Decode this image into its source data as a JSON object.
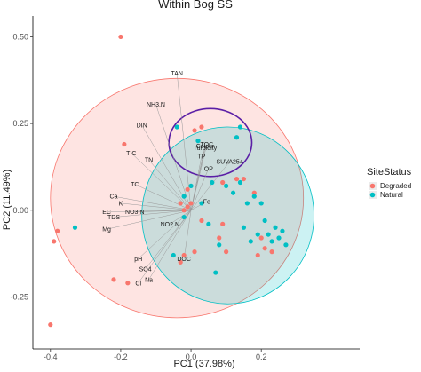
{
  "chart_data": {
    "type": "scatter",
    "title": "Within Bog SS",
    "xlabel": "PC1 (37.98%)",
    "ylabel": "PC2 (11.49%)",
    "xlim": [
      -0.45,
      0.48
    ],
    "ylim": [
      -0.4,
      0.56
    ],
    "x_ticks": [
      -0.4,
      -0.2,
      0.0,
      0.2
    ],
    "x_tick_labels": [
      "-0.4",
      "-0.2",
      "0.0",
      "0.2"
    ],
    "y_ticks": [
      -0.25,
      0.0,
      0.25,
      0.5
    ],
    "y_tick_labels": [
      "-0.25",
      "0.00",
      "0.25",
      "0.50"
    ],
    "grid": false,
    "legend": {
      "title": "SiteStatus",
      "position": "right",
      "entries": [
        {
          "label": "Degraded",
          "color": "#F8766D"
        },
        {
          "label": "Natural",
          "color": "#00BFC4"
        }
      ]
    },
    "series": [
      {
        "name": "Degraded",
        "color": "#F8766D",
        "points": [
          [
            -0.2,
            0.5
          ],
          [
            -0.19,
            0.19
          ],
          [
            -0.38,
            -0.06
          ],
          [
            -0.39,
            -0.09
          ],
          [
            -0.4,
            -0.33
          ],
          [
            -0.22,
            -0.2
          ],
          [
            -0.18,
            -0.21
          ],
          [
            -0.01,
            0.06
          ],
          [
            -0.02,
            0.0
          ],
          [
            -0.01,
            0.01
          ],
          [
            0.0,
            0.02
          ],
          [
            -0.03,
            0.02
          ],
          [
            0.01,
            0.23
          ],
          [
            0.03,
            0.24
          ],
          [
            0.09,
            0.08
          ],
          [
            0.13,
            0.09
          ],
          [
            0.15,
            0.09
          ],
          [
            -0.02,
            -0.13
          ],
          [
            -0.03,
            -0.15
          ],
          [
            0.01,
            -0.12
          ],
          [
            0.1,
            -0.12
          ],
          [
            0.09,
            -0.04
          ],
          [
            0.2,
            -0.08
          ],
          [
            0.21,
            -0.11
          ],
          [
            0.19,
            -0.13
          ],
          [
            0.23,
            -0.12
          ],
          [
            0.03,
            -0.03
          ],
          [
            0.18,
            0.05
          ],
          [
            0.08,
            -0.08
          ]
        ]
      },
      {
        "name": "Natural",
        "color": "#00BFC4",
        "points": [
          [
            -0.33,
            -0.05
          ],
          [
            -0.02,
            0.04
          ],
          [
            0.0,
            0.07
          ],
          [
            0.03,
            0.02
          ],
          [
            -0.04,
            0.24
          ],
          [
            0.02,
            0.2
          ],
          [
            0.06,
            0.08
          ],
          [
            0.1,
            0.07
          ],
          [
            0.14,
            0.08
          ],
          [
            0.14,
            0.24
          ],
          [
            0.13,
            0.21
          ],
          [
            0.12,
            0.05
          ],
          [
            0.16,
            0.02
          ],
          [
            0.21,
            -0.03
          ],
          [
            0.18,
            0.04
          ],
          [
            0.2,
            0.02
          ],
          [
            0.24,
            -0.05
          ],
          [
            0.22,
            -0.07
          ],
          [
            0.25,
            -0.08
          ],
          [
            0.26,
            -0.06
          ],
          [
            0.19,
            -0.07
          ],
          [
            0.23,
            -0.09
          ],
          [
            0.05,
            -0.04
          ],
          [
            -0.02,
            -0.02
          ],
          [
            0.08,
            -0.1
          ],
          [
            -0.05,
            -0.13
          ],
          [
            0.07,
            -0.18
          ],
          [
            0.17,
            -0.09
          ],
          [
            0.27,
            -0.1
          ],
          [
            0.15,
            -0.05
          ]
        ]
      }
    ],
    "ellipses": [
      {
        "group": "Degraded",
        "cx": -0.04,
        "cy": 0.035,
        "rx": 0.36,
        "ry": 0.345,
        "fill": "#F8766D",
        "stroke": "#F8766D"
      },
      {
        "group": "Natural",
        "cx": 0.105,
        "cy": -0.015,
        "rx": 0.245,
        "ry": 0.255,
        "fill": "#00BFC4",
        "stroke": "#00BFC4"
      },
      {
        "group": "",
        "cx": 0.055,
        "cy": 0.195,
        "rx": 0.118,
        "ry": 0.098,
        "fill": "none",
        "stroke": "#5B1FA6"
      }
    ],
    "loadings_origin": [
      0.0,
      0.0
    ],
    "loadings": [
      {
        "label": "TAN",
        "x": -0.04,
        "y": 0.395
      },
      {
        "label": "NH3.N",
        "x": -0.1,
        "y": 0.305
      },
      {
        "label": "DIN",
        "x": -0.14,
        "y": 0.245
      },
      {
        "label": "TIC",
        "x": -0.17,
        "y": 0.165
      },
      {
        "label": "TN",
        "x": -0.12,
        "y": 0.145
      },
      {
        "label": "TC",
        "x": -0.16,
        "y": 0.075
      },
      {
        "label": "Ca",
        "x": -0.22,
        "y": 0.04
      },
      {
        "label": "K",
        "x": -0.2,
        "y": 0.02
      },
      {
        "label": "EC",
        "x": -0.24,
        "y": -0.005
      },
      {
        "label": "TDS",
        "x": -0.22,
        "y": -0.02
      },
      {
        "label": "NO3.N",
        "x": -0.16,
        "y": -0.005
      },
      {
        "label": "Mg",
        "x": -0.24,
        "y": -0.055
      },
      {
        "label": "NO2.N",
        "x": -0.06,
        "y": -0.04
      },
      {
        "label": "TOC",
        "x": 0.045,
        "y": 0.19
      },
      {
        "label": "Colour",
        "x": 0.04,
        "y": 0.185
      },
      {
        "label": "Turbidity",
        "x": 0.04,
        "y": 0.18
      },
      {
        "label": "TP",
        "x": 0.03,
        "y": 0.155
      },
      {
        "label": "SUVA254",
        "x": 0.11,
        "y": 0.14
      },
      {
        "label": "OP",
        "x": 0.05,
        "y": 0.12
      },
      {
        "label": "Fe",
        "x": 0.045,
        "y": 0.025
      },
      {
        "label": "pH",
        "x": -0.15,
        "y": -0.14
      },
      {
        "label": "DOC",
        "x": -0.02,
        "y": -0.14
      },
      {
        "label": "SO4",
        "x": -0.13,
        "y": -0.17
      },
      {
        "label": "Na",
        "x": -0.12,
        "y": -0.2
      },
      {
        "label": "Cl",
        "x": -0.15,
        "y": -0.21
      }
    ]
  }
}
